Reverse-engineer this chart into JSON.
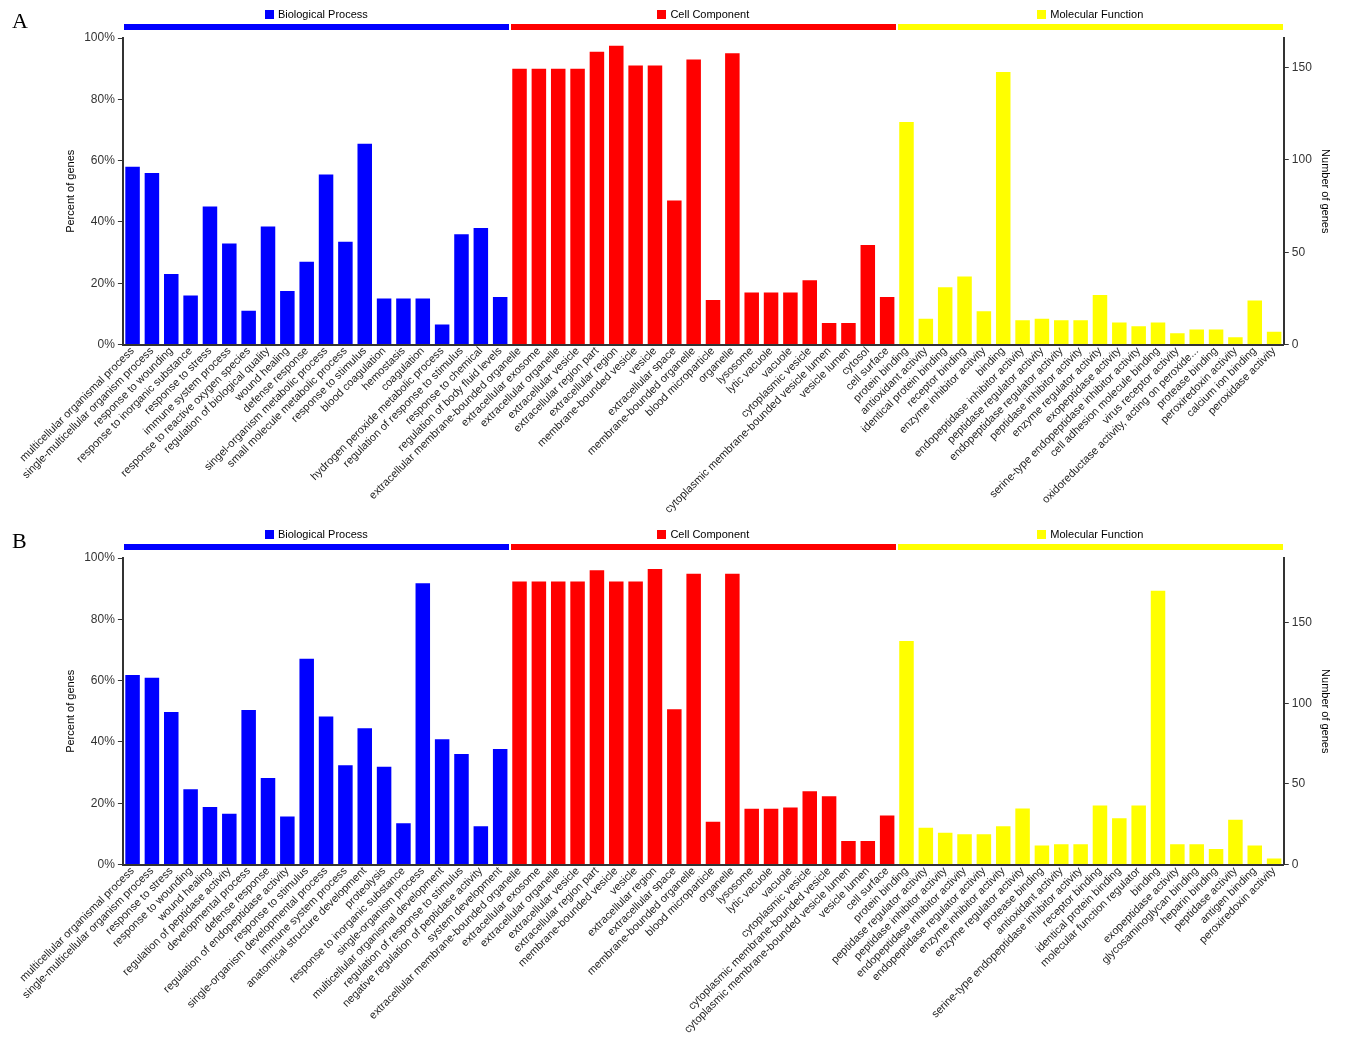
{
  "chart_data": [
    {
      "type": "bar",
      "title": "A",
      "ylabel": "Percent of genes",
      "y2label": "Number of genes",
      "grid": false,
      "legend": "top",
      "categories": [
        "multicellular organismal process",
        "single-multicellular organism process",
        "response to wounding",
        "response to inorganic substance",
        "response to stress",
        "immune system process",
        "response to reactive oxygen species",
        "regulation of biological quality",
        "wound healing",
        "defense response",
        "singel-organism metabolic process",
        "small molecule metabolic process",
        "response to stimulus",
        "blood coagulation",
        "hemostasis",
        "coagulation",
        "hydrogen peroxide metabolic process",
        "regulation of response to stimulus",
        "response to chemical",
        "regulation of body fluid levels",
        "extracellular membrane-bounded organelle",
        "extracellular exosome",
        "extracellular organelle",
        "extracellular vesicle",
        "extracellular region part",
        "extracellular region",
        "membrane-bounded vesicle",
        "vesicle",
        "extracellular space",
        "membrane-bounded organelle",
        "blood microparticle",
        "organelle",
        "lysosome",
        "lytic vacuole",
        "vacuole",
        "cytoplasmic vesicle",
        "cytoplasmic membrane-bounded vesicle lumen",
        "vesicle lumen",
        "cytosol",
        "cell surface",
        "protein binding",
        "antioxidant activity",
        "identical protein binding",
        "receptor binding",
        "enzyme inhibitor activity",
        "binding",
        "endopeptidase inhibitor activity",
        "peptidase regulator activity",
        "endopeptidase regulator activity",
        "peptidase inhibitor activity",
        "enzyme regulator activity",
        "exopeptidase activity",
        "serine-type endopeptidase inhibitor activity",
        "cell adhesion molecule binding",
        "virus receptor activity",
        "oxidoreductase activity, acting on peroxide...",
        "protease binding",
        "peroxiredoxin activity",
        "calcium ion binding",
        "peroxidase activity"
      ],
      "series": [
        {
          "name": "Biological Process",
          "color": "#0000ff",
          "values": [
            58,
            56,
            23,
            16,
            45,
            33,
            11,
            38.5,
            17.5,
            27,
            55.5,
            33.5,
            65.5,
            15,
            15,
            15,
            6.5,
            36,
            38,
            15.5,
            null,
            null,
            null,
            null,
            null,
            null,
            null,
            null,
            null,
            null,
            null,
            null,
            null,
            null,
            null,
            null,
            null,
            null,
            null,
            null,
            null,
            null,
            null,
            null,
            null,
            null,
            null,
            null,
            null,
            null,
            null,
            null,
            null,
            null,
            null,
            null,
            null,
            null,
            null,
            null
          ]
        },
        {
          "name": "Cell Component",
          "color": "#ff0000",
          "values": [
            null,
            null,
            null,
            null,
            null,
            null,
            null,
            null,
            null,
            null,
            null,
            null,
            null,
            null,
            null,
            null,
            null,
            null,
            null,
            null,
            90,
            90,
            90,
            90,
            95.5,
            97.5,
            91,
            91,
            47,
            93,
            14.5,
            95,
            17,
            17,
            17,
            21,
            7,
            7,
            32.5,
            15.5,
            null,
            null,
            null,
            null,
            null,
            null,
            null,
            null,
            null,
            null,
            null,
            null,
            null,
            null,
            null,
            null,
            null,
            null,
            null,
            null
          ]
        },
        {
          "name": "Molecular Function",
          "color": "#ffff00",
          "values": [
            null,
            null,
            null,
            null,
            null,
            null,
            null,
            null,
            null,
            null,
            null,
            null,
            null,
            null,
            null,
            null,
            null,
            null,
            null,
            null,
            null,
            null,
            null,
            null,
            null,
            null,
            null,
            null,
            null,
            null,
            null,
            null,
            null,
            null,
            null,
            null,
            null,
            null,
            null,
            null,
            72.6,
            8.4,
            18.7,
            22.2,
            10.9,
            88.9,
            7.9,
            8.4,
            7.9,
            7.9,
            16.2,
            7.2,
            6,
            7.2,
            3.7,
            4.9,
            4.9,
            2.4,
            14.4,
            4.2
          ]
        }
      ],
      "ylim": [
        0,
        100
      ],
      "yticks": [
        {
          "value": 0,
          "label": "0%"
        },
        {
          "value": 20,
          "label": "20%"
        },
        {
          "value": 40,
          "label": "40%"
        },
        {
          "value": 60,
          "label": "60%"
        },
        {
          "value": 80,
          "label": "80%"
        },
        {
          "value": 100,
          "label": "100%"
        }
      ],
      "y2lim": [
        0,
        166
      ],
      "y2ticks": [
        0,
        50,
        100,
        150
      ]
    },
    {
      "type": "bar",
      "title": "B",
      "ylabel": "Percent of genes",
      "y2label": "Number of genes",
      "grid": false,
      "legend": "top",
      "categories": [
        "multicellular organismal process",
        "single-multicellular organism process",
        "response to stress",
        "response to wounding",
        "wound healing",
        "regulation of peptidase activity",
        "developmental process",
        "defense response",
        "regulation of endopeptidase activity",
        "response to stimulus",
        "single-organism developmental process",
        "immune system process",
        "anatomical structure development",
        "proteolysis",
        "response to inorganic substance",
        "single-organism process",
        "multicellular organismal development",
        "regulation of response to stimulus",
        "negative regulation of peptidase activity",
        "system development",
        "extracellular membrane-bounded organelle",
        "extracellular exosome",
        "extracellular organelle",
        "extracellular vesicle",
        "extracellular region part",
        "membrane-bounded vesicle",
        "vesicle",
        "extracellular region",
        "extracellular space",
        "membrane-bounded organelle",
        "blood microparticle",
        "organelle",
        "lysosome",
        "lytic vacuole",
        "vacuole",
        "cytoplasmic vesicle",
        "cytoplasmic membrane-bounded vesicle",
        "cytoplasmic membrane-bounded vesicle lumen",
        "vesicle lumen",
        "cell surface",
        "protein binding",
        "peptidase regulator activity",
        "peptidase inhibitor activity",
        "endopeptidase inhibitor activity",
        "endopeptidase regulator activity",
        "enzyme inhibitor activity",
        "enzyme regulator activity",
        "protease binding",
        "antioxidant activity",
        "serine-type endopeptidase inhibitor activity",
        "receptor binding",
        "identical protein binding",
        "molecular function regulator",
        "binding",
        "exopeptidase activity",
        "glycosaminoglycan binding",
        "heparin binding",
        "peptidase activity",
        "antigen binding",
        "peroxiredoxin activity"
      ],
      "series": [
        {
          "name": "Biological Process",
          "color": "#0000ff",
          "values": [
            61.8,
            60.9,
            49.8,
            24.6,
            18.8,
            16.6,
            50.4,
            28.2,
            15.7,
            67.1,
            48.3,
            32.4,
            44.5,
            31.9,
            13.5,
            91.8,
            40.9,
            36.1,
            12.5,
            37.7,
            null,
            null,
            null,
            null,
            null,
            null,
            null,
            null,
            null,
            null,
            null,
            null,
            null,
            null,
            null,
            null,
            null,
            null,
            null,
            null,
            null,
            null,
            null,
            null,
            null,
            null,
            null,
            null,
            null,
            null,
            null,
            null,
            null,
            null,
            null,
            null,
            null,
            null,
            null,
            null
          ]
        },
        {
          "name": "Cell Component",
          "color": "#ff0000",
          "values": [
            null,
            null,
            null,
            null,
            null,
            null,
            null,
            null,
            null,
            null,
            null,
            null,
            null,
            null,
            null,
            null,
            null,
            null,
            null,
            null,
            92.3,
            92.3,
            92.3,
            92.3,
            96,
            92.3,
            92.3,
            96.4,
            50.7,
            94.9,
            14,
            94.9,
            18.2,
            18.2,
            18.6,
            23.9,
            22.3,
            7.7,
            7.7,
            16,
            null,
            null,
            null,
            null,
            null,
            null,
            null,
            null,
            null,
            null,
            null,
            null,
            null,
            null,
            null,
            null,
            null,
            null,
            null,
            null
          ]
        },
        {
          "name": "Molecular Function",
          "color": "#ffff00",
          "values": [
            null,
            null,
            null,
            null,
            null,
            null,
            null,
            null,
            null,
            null,
            null,
            null,
            null,
            null,
            null,
            null,
            null,
            null,
            null,
            null,
            null,
            null,
            null,
            null,
            null,
            null,
            null,
            null,
            null,
            null,
            null,
            null,
            null,
            null,
            null,
            null,
            null,
            null,
            null,
            null,
            72.9,
            12,
            10.4,
            9.9,
            9.9,
            12.5,
            18.3,
            6.2,
            6.6,
            6.6,
            19.3,
            15.1,
            19.3,
            89.3,
            6.6,
            6.6,
            5.1,
            14.6,
            6.2,
            2
          ]
        }
      ],
      "ylim": [
        0,
        100
      ],
      "yticks": [
        {
          "value": 0,
          "label": "0%"
        },
        {
          "value": 20,
          "label": "20%"
        },
        {
          "value": 40,
          "label": "40%"
        },
        {
          "value": 60,
          "label": "60%"
        },
        {
          "value": 80,
          "label": "80%"
        },
        {
          "value": 100,
          "label": "100%"
        }
      ],
      "y2lim": [
        0,
        190
      ],
      "y2ticks": [
        0,
        50,
        100,
        150
      ]
    }
  ]
}
